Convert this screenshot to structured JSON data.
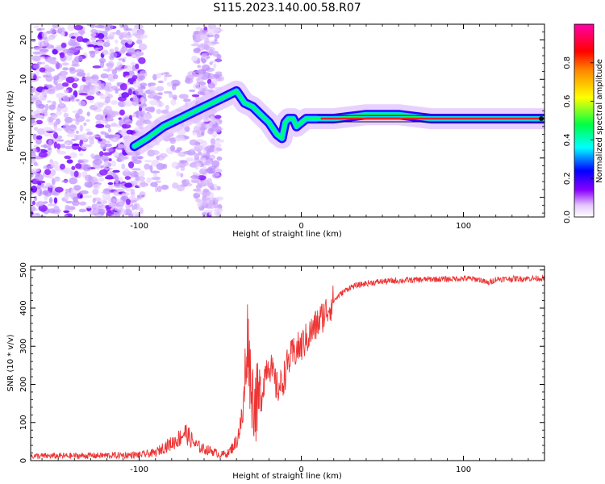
{
  "title": "S115.2023.140.00.58.R07",
  "chart_data": [
    {
      "type": "heatmap",
      "xlabel": "Height of straight line (km)",
      "ylabel": "Frequency (Hz)",
      "xlim": [
        -167,
        150
      ],
      "ylim": [
        -25,
        24
      ],
      "x_ticks": [
        -100,
        0,
        100
      ],
      "y_ticks": [
        -20,
        -10,
        0,
        10,
        20
      ],
      "grid": false,
      "colorbar": {
        "label": "Normalized spectral amplitude",
        "range": [
          0,
          1
        ],
        "ticks": [
          0.0,
          0.2,
          0.4,
          0.6,
          0.8
        ],
        "colormap": "rainbow",
        "stops": [
          "#ffffff",
          "#8a00ff",
          "#0000ff",
          "#00ffff",
          "#00ff00",
          "#ffff00",
          "#ff0000",
          "#ff00aa"
        ]
      },
      "signal_track": {
        "x": [
          -103,
          -95,
          -85,
          -75,
          -65,
          -55,
          -45,
          -40,
          -35,
          -30,
          -25,
          -20,
          -15,
          -12,
          -10,
          -8,
          -5,
          -3,
          0,
          3,
          10,
          20,
          40,
          60,
          80,
          100,
          120,
          150
        ],
        "y": [
          -7,
          -5,
          -2,
          0,
          2,
          4,
          6,
          7,
          4,
          3,
          1,
          -1,
          -4,
          -5,
          -1,
          0,
          0,
          -2,
          -1,
          0,
          0,
          0,
          1,
          1,
          0,
          0,
          0,
          0
        ]
      }
    },
    {
      "type": "line",
      "xlabel": "Height of straight line (km)",
      "ylabel": "SNR (10 * v/v)",
      "xlim": [
        -167,
        150
      ],
      "ylim": [
        0,
        510
      ],
      "x_ticks": [
        -100,
        0,
        100
      ],
      "y_ticks": [
        0,
        100,
        200,
        300,
        400,
        500
      ],
      "color": "#ee3333",
      "grid": false,
      "series": [
        {
          "x": [
            -167,
            -150,
            -130,
            -110,
            -100,
            -90,
            -85,
            -80,
            -75,
            -72,
            -70,
            -65,
            -60,
            -55,
            -50,
            -45,
            -40,
            -36,
            -34,
            -33,
            -32,
            -31,
            -30,
            -28,
            -25,
            -22,
            -20,
            -18,
            -15,
            -12,
            -10,
            -8,
            -5,
            -3,
            0,
            5,
            10,
            15,
            20,
            25,
            30,
            40,
            50,
            60,
            70,
            80,
            90,
            100,
            110,
            115,
            120,
            130,
            140,
            150
          ],
          "y": [
            12,
            12,
            13,
            14,
            15,
            20,
            35,
            45,
            60,
            75,
            65,
            40,
            30,
            25,
            15,
            20,
            50,
            120,
            280,
            340,
            250,
            200,
            170,
            150,
            160,
            240,
            260,
            230,
            190,
            200,
            230,
            260,
            280,
            290,
            300,
            330,
            360,
            390,
            420,
            440,
            455,
            465,
            470,
            472,
            474,
            476,
            476,
            478,
            475,
            465,
            476,
            477,
            478,
            478
          ]
        }
      ]
    }
  ]
}
